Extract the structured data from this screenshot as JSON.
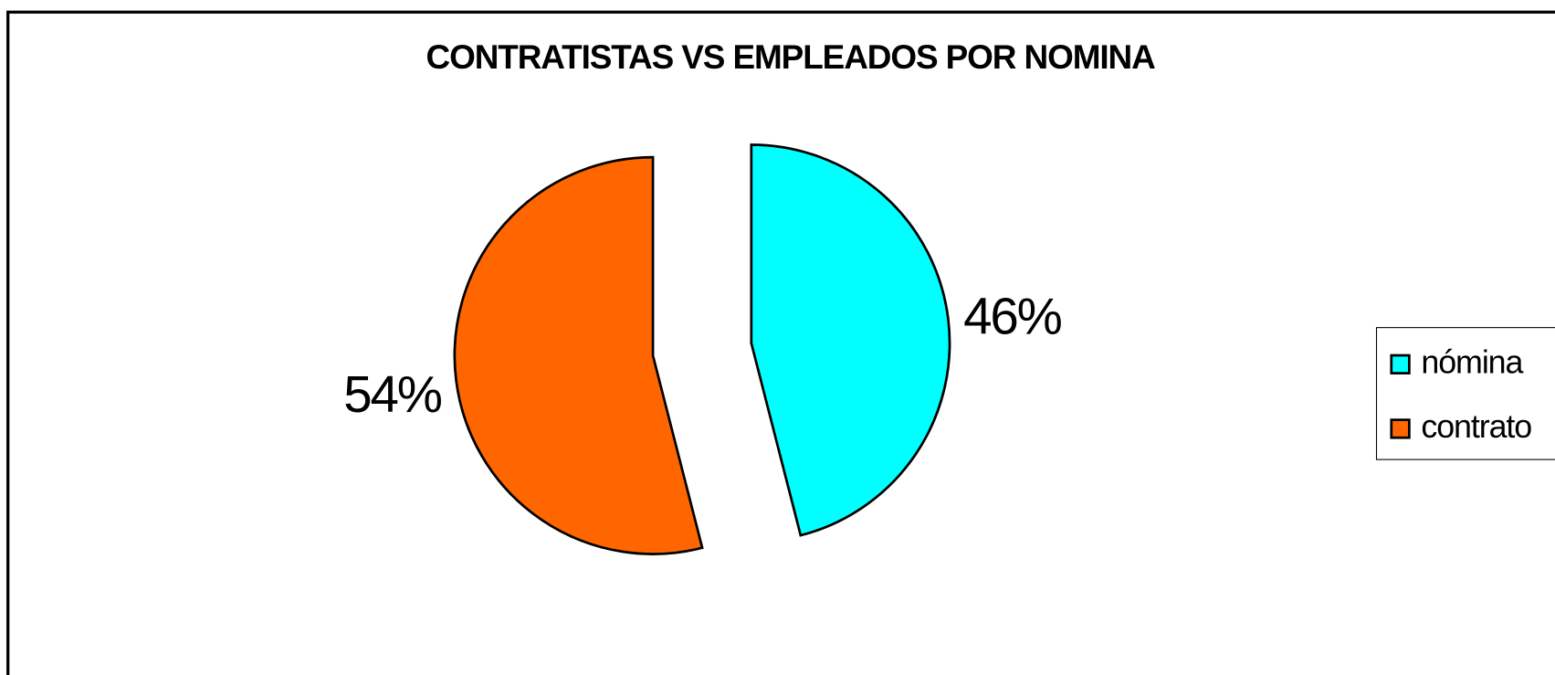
{
  "chart_data": {
    "type": "pie",
    "title": "CONTRATISTAS VS EMPLEADOS POR NOMINA",
    "categories": [
      "nómina",
      "contrato"
    ],
    "values": [
      46,
      54
    ],
    "value_labels": [
      "46%",
      "54%"
    ],
    "colors": [
      "#00ffff",
      "#ff6600"
    ],
    "legend": "right"
  }
}
